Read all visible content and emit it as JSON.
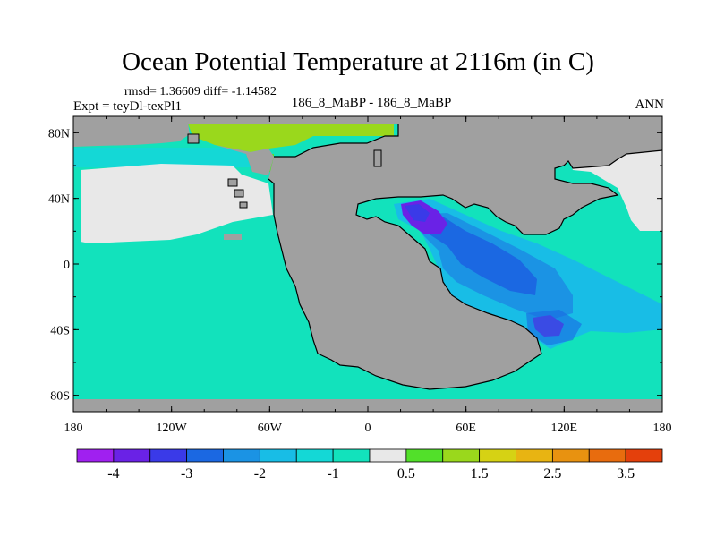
{
  "title": "Ocean Potential Temperature at 2116m (in C)",
  "stats": "rmsd= 1.36609 diff= -1.14582",
  "left_label": "Expt = teyDl-texPl1",
  "center_label": "186_8_MaBP - 186_8_MaBP",
  "right_label": "ANN",
  "map": {
    "lon_range": [
      -180,
      180
    ],
    "lat_range": [
      -90,
      90
    ],
    "land_color": "#a0a0a0",
    "ocean_base_color": "#12e2bc",
    "lon_ticks": [
      {
        "value": -180,
        "label": "180"
      },
      {
        "value": -120,
        "label": "120W"
      },
      {
        "value": -60,
        "label": "60W"
      },
      {
        "value": 0,
        "label": "0"
      },
      {
        "value": 60,
        "label": "60E"
      },
      {
        "value": 120,
        "label": "120E"
      },
      {
        "value": 180,
        "label": "180"
      }
    ],
    "lat_ticks": [
      {
        "value": 80,
        "label": "80N"
      },
      {
        "value": 40,
        "label": "40N"
      },
      {
        "value": 0,
        "label": "0"
      },
      {
        "value": -40,
        "label": "40S"
      },
      {
        "value": -80,
        "label": "80S"
      }
    ]
  },
  "colorbar": {
    "colors": [
      "#a020f0",
      "#6a22e6",
      "#3a3ae8",
      "#1b68e2",
      "#1b93e4",
      "#18bde6",
      "#14d8d6",
      "#12e2bc",
      "#e8e8e8",
      "#52e02a",
      "#9ad81c",
      "#d6d214",
      "#e8b412",
      "#e89210",
      "#e86c0e",
      "#e4400c"
    ],
    "labels": [
      {
        "boundary": 1,
        "text": "-4"
      },
      {
        "boundary": 3,
        "text": "-3"
      },
      {
        "boundary": 5,
        "text": "-2"
      },
      {
        "boundary": 7,
        "text": "-1"
      },
      {
        "boundary": 9,
        "text": "0.5"
      },
      {
        "boundary": 11,
        "text": "1.5"
      },
      {
        "boundary": 13,
        "text": "2.5"
      },
      {
        "boundary": 15,
        "text": "3.5"
      }
    ]
  }
}
